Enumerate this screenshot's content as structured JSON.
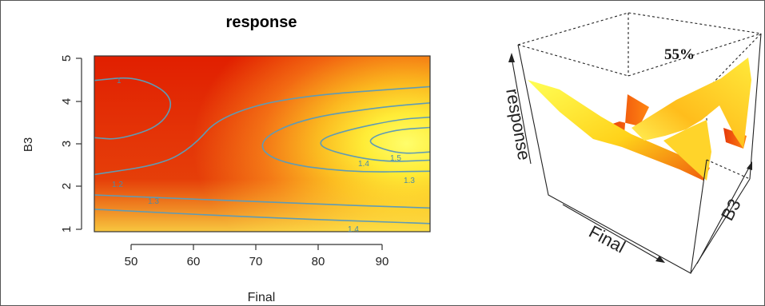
{
  "chart_data": [
    {
      "type": "contour",
      "title": "response",
      "xlabel": "Final",
      "ylabel": "B3",
      "xlim": [
        44,
        98
      ],
      "ylim": [
        0.8,
        5.1
      ],
      "xticks": [
        "50",
        "60",
        "70",
        "80",
        "90"
      ],
      "yticks": [
        "1",
        "2",
        "3",
        "4",
        "5"
      ],
      "colormap": [
        "#e11f00",
        "#ffff66"
      ],
      "contour_labels": [
        "1",
        "1.2",
        "1.3",
        "1.4",
        "1.5",
        "1.3",
        "1.4"
      ],
      "contours": [
        {
          "label": "1",
          "points": [
            [
              44,
              3.1
            ],
            [
              48,
              3.05
            ],
            [
              55,
              3.4
            ],
            [
              57,
              4.1
            ],
            [
              51,
              4.6
            ],
            [
              44,
              4.5
            ]
          ]
        },
        {
          "label": "1.2",
          "points": [
            [
              44,
              2.2
            ],
            [
              55,
              2.45
            ],
            [
              60,
              2.9
            ],
            [
              64,
              3.6
            ],
            [
              75,
              4.1
            ],
            [
              98,
              4.35
            ]
          ]
        },
        {
          "label": "1.3",
          "points": [
            [
              44,
              1.7
            ],
            [
              75,
              1.5
            ],
            [
              98,
              1.38
            ]
          ]
        },
        {
          "label": "1.3",
          "points": [
            [
              98,
              2.28
            ],
            [
              85,
              2.25
            ],
            [
              73,
              2.5
            ],
            [
              70,
              3.0
            ],
            [
              77,
              3.55
            ],
            [
              90,
              3.85
            ],
            [
              98,
              3.95
            ]
          ]
        },
        {
          "label": "1.4",
          "points": [
            [
              44,
              1.35
            ],
            [
              70,
              1.15
            ],
            [
              98,
              1.0
            ]
          ]
        },
        {
          "label": "1.4",
          "points": [
            [
              98,
              2.55
            ],
            [
              90,
              2.5
            ],
            [
              81,
              2.8
            ],
            [
              80,
              3.05
            ],
            [
              85,
              3.3
            ],
            [
              93,
              3.55
            ],
            [
              98,
              3.6
            ]
          ]
        },
        {
          "label": "1.5",
          "points": [
            [
              98,
              2.75
            ],
            [
              93,
              2.7
            ],
            [
              88,
              2.95
            ],
            [
              89,
              3.15
            ],
            [
              93,
              3.3
            ],
            [
              98,
              3.35
            ]
          ]
        }
      ]
    },
    {
      "type": "surface3d",
      "label": "55%",
      "axis_labels": {
        "z": "response",
        "x": "Final",
        "y": "B3"
      }
    }
  ]
}
